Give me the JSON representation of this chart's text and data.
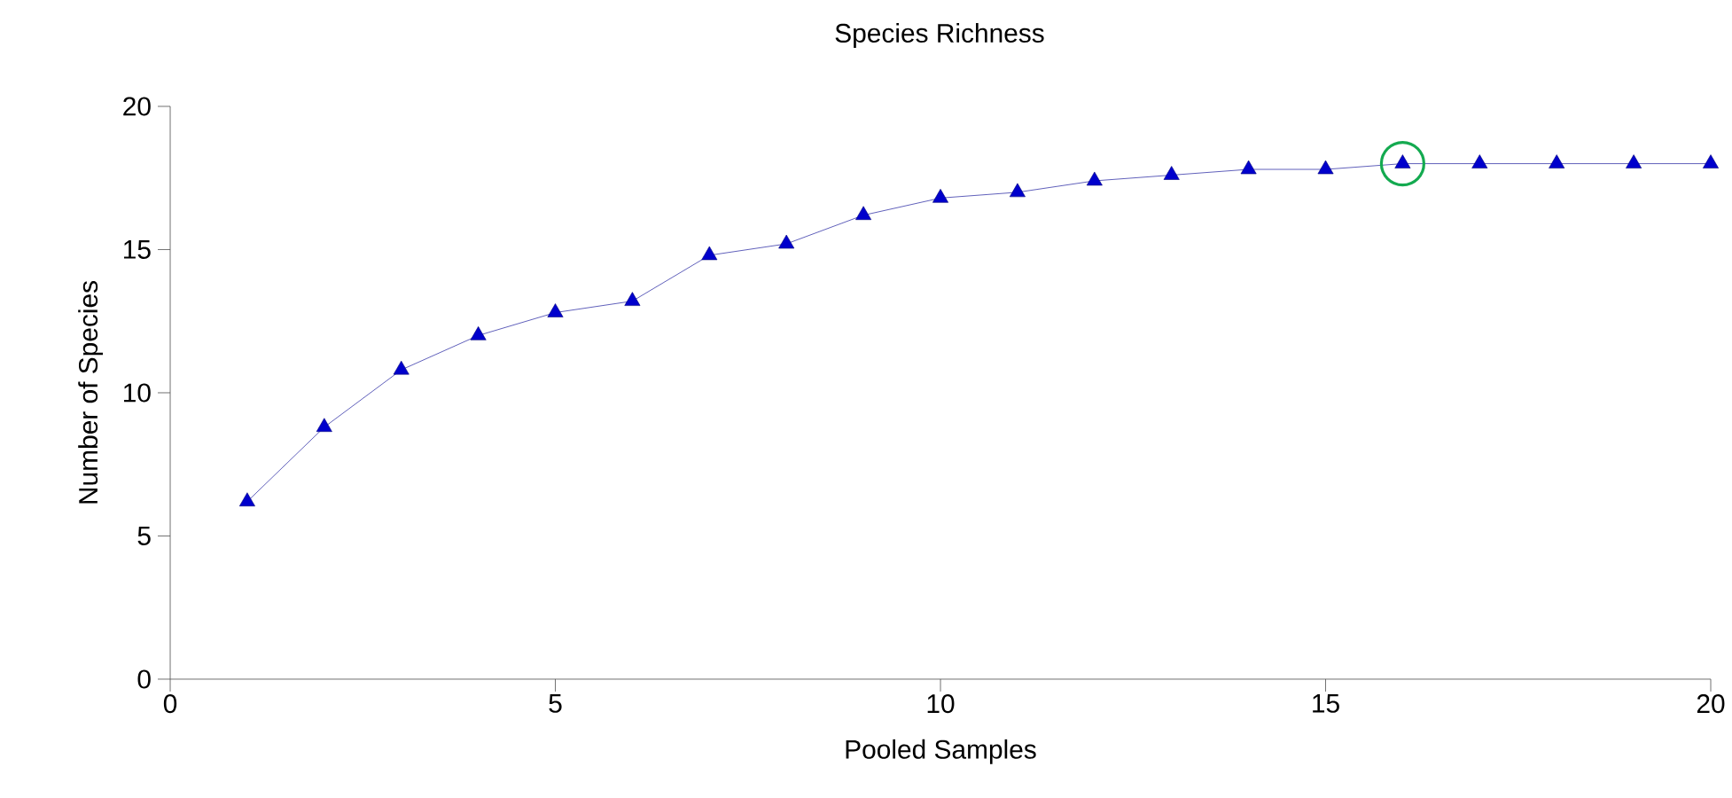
{
  "chart_data": {
    "type": "line",
    "title": "Species Richness",
    "xlabel": "Pooled Samples",
    "ylabel": "Number of Species",
    "x": [
      1,
      2,
      3,
      4,
      5,
      6,
      7,
      8,
      9,
      10,
      11,
      12,
      13,
      14,
      15,
      16,
      17,
      18,
      19,
      20
    ],
    "series": [
      {
        "color": "#0000cc",
        "values": [
          6.2,
          8.8,
          10.8,
          12,
          12.8,
          13.2,
          14.8,
          15.2,
          16.2,
          16.8,
          17,
          17.4,
          17.6,
          17.8,
          17.8,
          18,
          18,
          18,
          18,
          18
        ]
      },
      {
        "type": "scatter",
        "color": "#14aa50",
        "marker": "circle",
        "x": [
          16
        ],
        "values": [
          18
        ]
      }
    ],
    "xlim": [
      0,
      20
    ],
    "ylim": [
      0,
      20
    ],
    "xticks": [
      0,
      5,
      10,
      15,
      20
    ],
    "yticks": [
      0,
      5,
      10,
      15,
      20
    ],
    "marker": "triangle",
    "line_style": "solid",
    "grid": false
  }
}
